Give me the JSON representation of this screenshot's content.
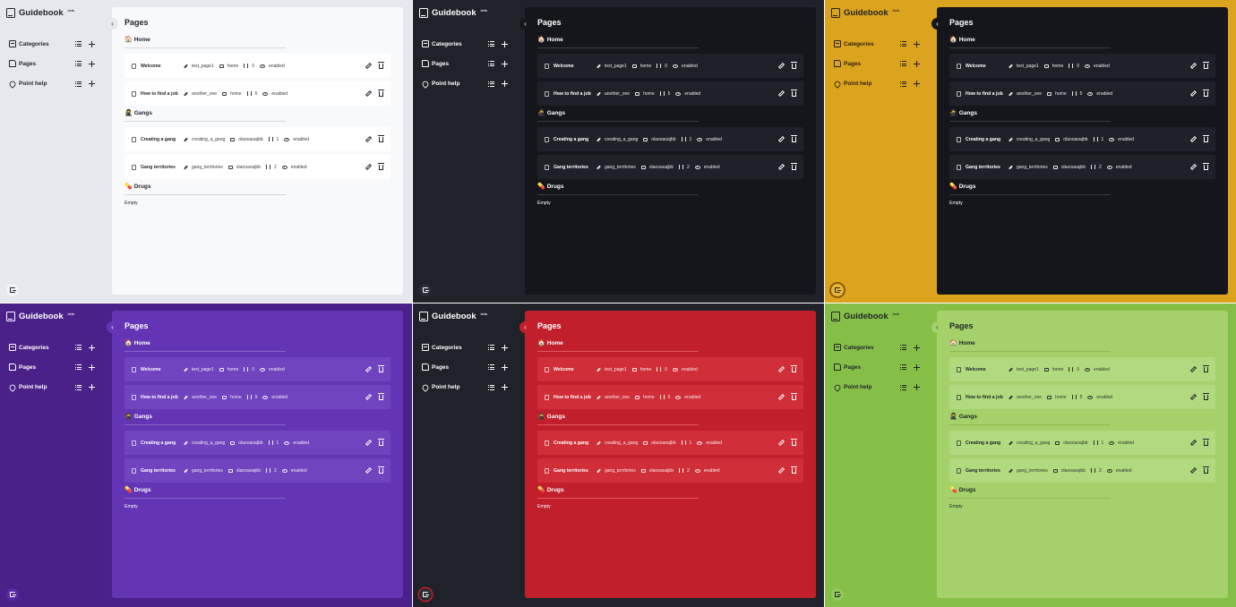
{
  "app": {
    "title": "Guidebook",
    "badge": "beta"
  },
  "sidebar": {
    "items": [
      {
        "label": "Categories",
        "icon": "categories-icon"
      },
      {
        "label": "Pages",
        "icon": "pages-icon"
      },
      {
        "label": "Point help",
        "icon": "map-pin-icon"
      }
    ]
  },
  "main": {
    "title": "Pages",
    "collapse_glyph": "‹",
    "empty_text": "Empty",
    "sections": [
      {
        "emoji": "🏠",
        "name": "Home",
        "pages": [
          {
            "title": "Welcome",
            "slug": "test_page1",
            "category": "home",
            "order": "0",
            "status": "enabled"
          },
          {
            "title": "How to find a job",
            "slug": "another_one",
            "category": "home",
            "order": "5",
            "status": "enabled"
          }
        ]
      },
      {
        "emoji": "🥷",
        "name": "Gangs",
        "pages": [
          {
            "title": "Creating a gang",
            "slug": "creating_a_gang",
            "category": "olaooaoajbb",
            "order": "1",
            "status": "enabled"
          },
          {
            "title": "Gang territories",
            "slug": "gang_territories",
            "category": "olaooaoajbb",
            "order": "2",
            "status": "enabled"
          }
        ]
      },
      {
        "emoji": "💊",
        "name": "Drugs",
        "pages": []
      }
    ]
  },
  "themes": [
    {
      "name": "light",
      "background": "#e6e8ee",
      "panel": "#f8f9fa"
    },
    {
      "name": "dark",
      "background": "#1f2229",
      "panel": "#14161b"
    },
    {
      "name": "gold",
      "background": "#dca31e",
      "panel": "#14161b"
    },
    {
      "name": "purple",
      "background": "#4a2188",
      "panel": "#6335b5"
    },
    {
      "name": "red",
      "background": "#1f2229",
      "panel": "#c21f2c"
    },
    {
      "name": "green",
      "background": "#86bf48",
      "panel": "#a4d16a"
    }
  ]
}
